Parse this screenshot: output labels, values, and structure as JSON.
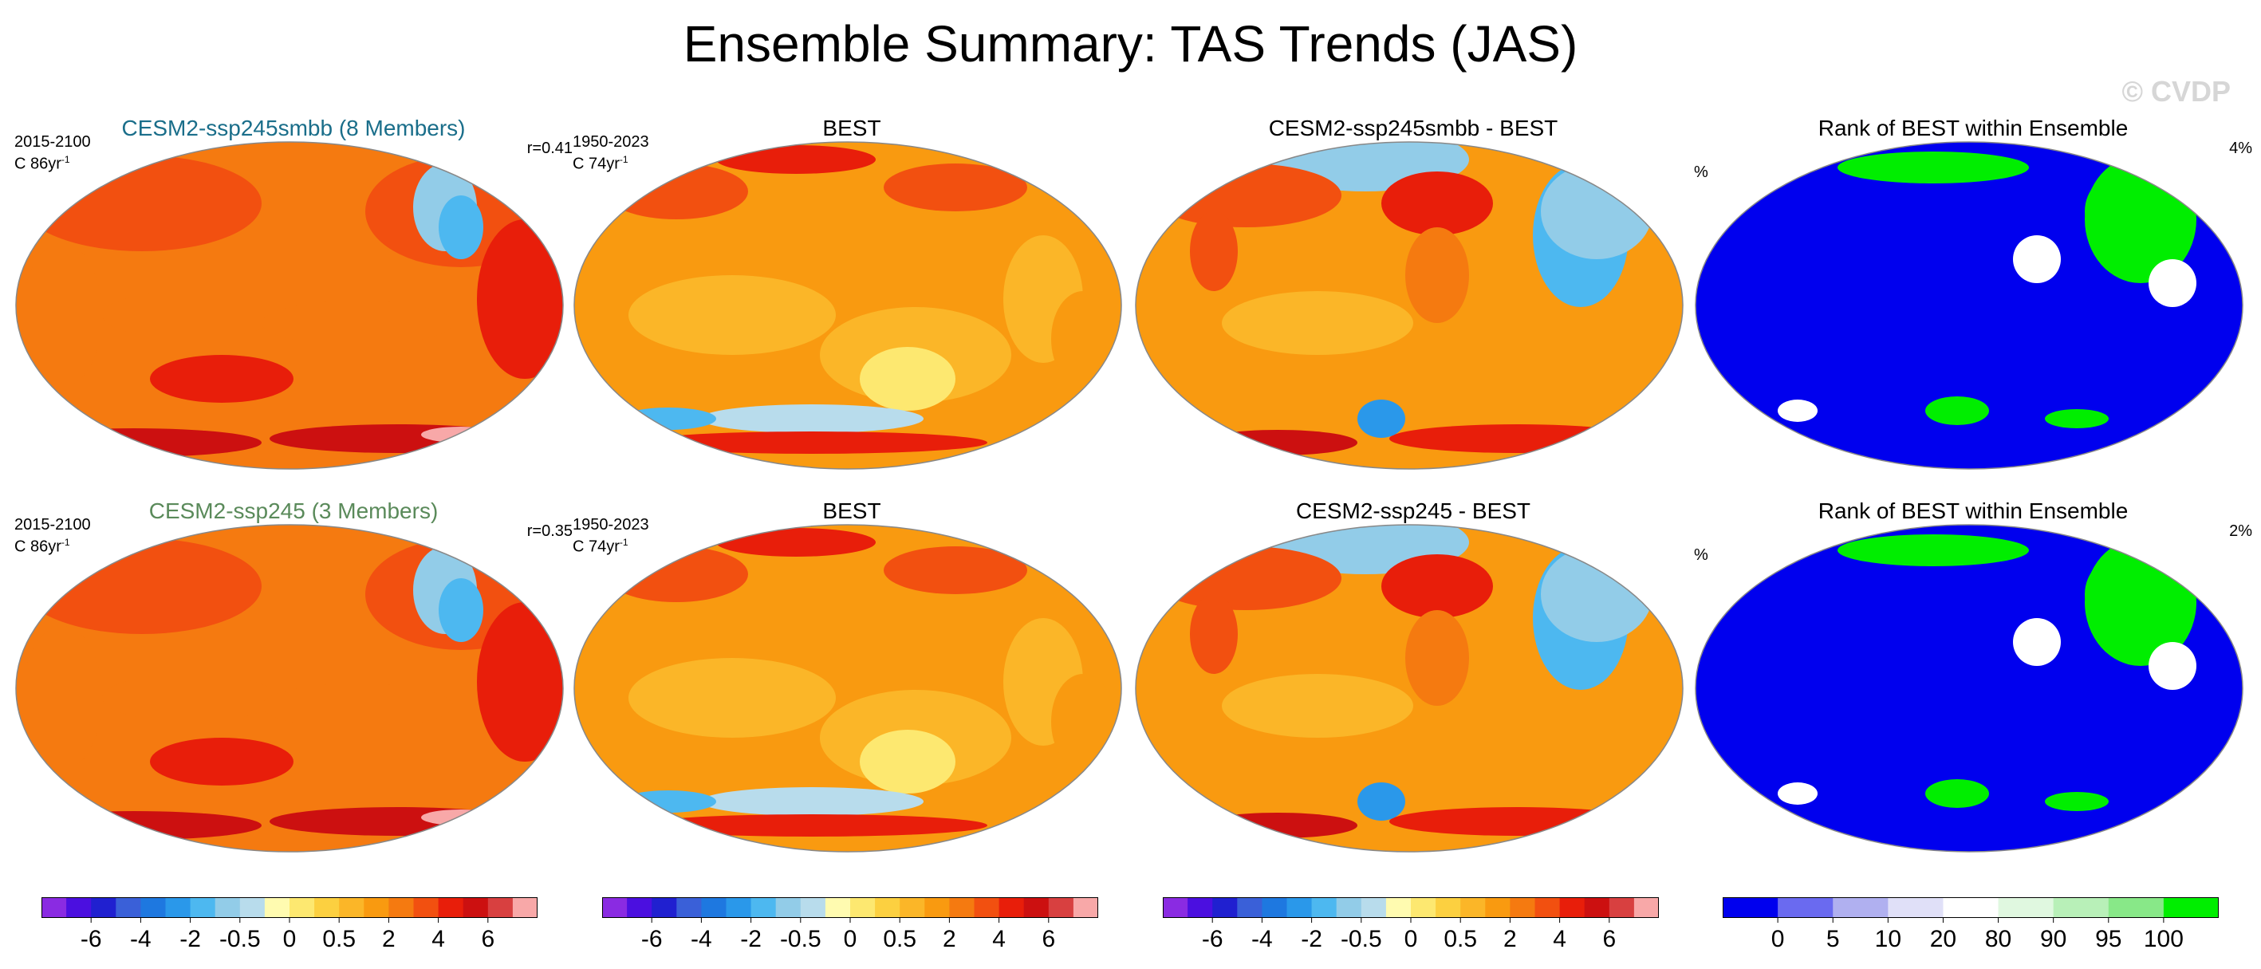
{
  "figure": {
    "title": "Ensemble Summary: TAS Trends (JAS)",
    "watermark": "© CVDP"
  },
  "colors": {
    "trend_palette": [
      "#8a2be2",
      "#4b0fe0",
      "#2020d0",
      "#3a60d8",
      "#1e78e0",
      "#2a98ea",
      "#4db8f0",
      "#92cce8",
      "#b8dcec",
      "#fffbb0",
      "#fde870",
      "#fcd040",
      "#fbb628",
      "#f99a10",
      "#f57a10",
      "#f25010",
      "#e81e0a",
      "#cc1010",
      "#d84040",
      "#f8a8a8"
    ],
    "rank_palette": [
      "#0000ee",
      "#6a6af0",
      "#b0b0f0",
      "#e0e0f8",
      "#ffffff",
      "#e0f8e0",
      "#b8f0b8",
      "#88e888",
      "#00ee00"
    ]
  },
  "panels": [
    {
      "title": "CESM2-ssp245smbb (8 Members)",
      "title_color": "#1a6e8a",
      "left_top": "2015-2100",
      "left_bottom": "C 86yr",
      "right": "r=0.41",
      "type": "model"
    },
    {
      "title": "BEST",
      "title_color": "#000000",
      "left_top": "1950-2023",
      "left_bottom": "C 74yr",
      "right": "",
      "type": "obs"
    },
    {
      "title": "CESM2-ssp245smbb - BEST",
      "title_color": "#000000",
      "left_top": "",
      "left_bottom": "",
      "right": "",
      "type": "diff"
    },
    {
      "title": "Rank of BEST within Ensemble",
      "title_color": "#000000",
      "left_top": "",
      "left_bottom": "",
      "right": "4%",
      "unit": "%",
      "type": "rank"
    },
    {
      "title": "CESM2-ssp245 (3 Members)",
      "title_color": "#5a8a5a",
      "left_top": "2015-2100",
      "left_bottom": "C 86yr",
      "right": "r=0.35",
      "type": "model"
    },
    {
      "title": "BEST",
      "title_color": "#000000",
      "left_top": "1950-2023",
      "left_bottom": "C 74yr",
      "right": "",
      "type": "obs"
    },
    {
      "title": "CESM2-ssp245 - BEST",
      "title_color": "#000000",
      "left_top": "",
      "left_bottom": "",
      "right": "",
      "type": "diff"
    },
    {
      "title": "Rank of BEST within Ensemble",
      "title_color": "#000000",
      "left_top": "",
      "left_bottom": "",
      "right": "2%",
      "unit": "%",
      "type": "rank"
    }
  ],
  "exponent": "-1",
  "colorbars": {
    "trend": {
      "labels": [
        "-6",
        "-4",
        "-2",
        "-0.5",
        "0",
        "0.5",
        "2",
        "4",
        "6"
      ],
      "label_boundaries": [
        2,
        4,
        6,
        8,
        10,
        12,
        14,
        16,
        18
      ],
      "n_colors": 20
    },
    "rank": {
      "labels": [
        "0",
        "5",
        "10",
        "20",
        "80",
        "90",
        "95",
        "100"
      ],
      "label_boundaries": [
        1,
        2,
        3,
        4,
        5,
        6,
        7,
        8
      ],
      "n_colors": 9
    }
  },
  "chart_data": [
    {
      "type": "heatmap",
      "title": "CESM2-ssp245smbb (8 Members)",
      "annotation": "r=0.41",
      "period": "2015-2100",
      "units": "C 86yr-1",
      "colorbar_ticks": [
        -6,
        -4,
        -2,
        -0.5,
        0,
        0.5,
        2,
        4,
        6
      ]
    },
    {
      "type": "heatmap",
      "title": "BEST",
      "period": "1950-2023",
      "units": "C 74yr-1",
      "colorbar_ticks": [
        -6,
        -4,
        -2,
        -0.5,
        0,
        0.5,
        2,
        4,
        6
      ]
    },
    {
      "type": "heatmap",
      "title": "CESM2-ssp245smbb - BEST",
      "colorbar_ticks": [
        -6,
        -4,
        -2,
        -0.5,
        0,
        0.5,
        2,
        4,
        6
      ]
    },
    {
      "type": "heatmap",
      "title": "Rank of BEST within Ensemble",
      "annotation": "4%",
      "units": "%",
      "colorbar_ticks": [
        0,
        5,
        10,
        20,
        80,
        90,
        95,
        100
      ]
    },
    {
      "type": "heatmap",
      "title": "CESM2-ssp245 (3 Members)",
      "annotation": "r=0.35",
      "period": "2015-2100",
      "units": "C 86yr-1",
      "colorbar_ticks": [
        -6,
        -4,
        -2,
        -0.5,
        0,
        0.5,
        2,
        4,
        6
      ]
    },
    {
      "type": "heatmap",
      "title": "BEST",
      "period": "1950-2023",
      "units": "C 74yr-1",
      "colorbar_ticks": [
        -6,
        -4,
        -2,
        -0.5,
        0,
        0.5,
        2,
        4,
        6
      ]
    },
    {
      "type": "heatmap",
      "title": "CESM2-ssp245 - BEST",
      "colorbar_ticks": [
        -6,
        -4,
        -2,
        -0.5,
        0,
        0.5,
        2,
        4,
        6
      ]
    },
    {
      "type": "heatmap",
      "title": "Rank of BEST within Ensemble",
      "annotation": "2%",
      "units": "%",
      "colorbar_ticks": [
        0,
        5,
        10,
        20,
        80,
        90,
        95,
        100
      ]
    }
  ]
}
